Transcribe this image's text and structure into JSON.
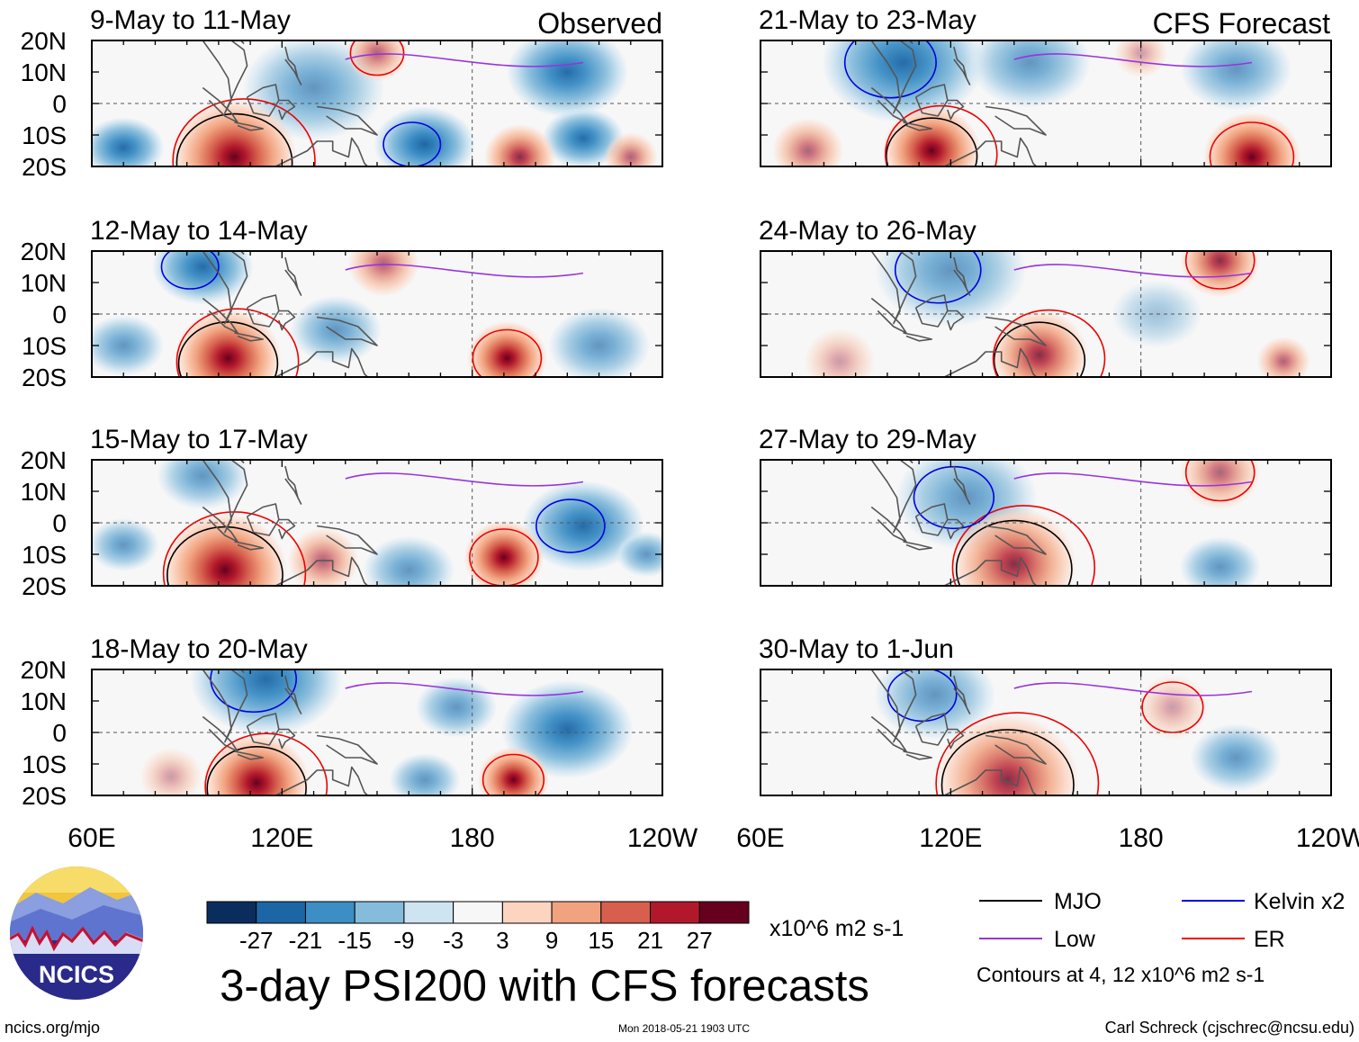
{
  "chart_data": {
    "type": "heatmap",
    "title": "3-day PSI200 with CFS forecasts",
    "variable": "PSI200",
    "units": "x10^6 m2 s-1",
    "column_headers": [
      "Observed",
      "CFS Forecast"
    ],
    "lat_ticks": [
      "20N",
      "10N",
      "0",
      "10S",
      "20S"
    ],
    "lon_ticks": [
      "60E",
      "120E",
      "180",
      "120W"
    ],
    "lat_range": [
      -20,
      20
    ],
    "lon_range": [
      60,
      240
    ],
    "panels": [
      {
        "period": "9-May to 11-May",
        "source": "Observed",
        "positive": [
          {
            "lon": 105,
            "lat": -17,
            "r": 14,
            "v": 27
          },
          {
            "lon": 150,
            "lat": 16,
            "r": 7,
            "v": 9
          },
          {
            "lon": 195,
            "lat": -17,
            "r": 8,
            "v": 15
          },
          {
            "lon": 230,
            "lat": -17,
            "r": 6,
            "v": 9
          }
        ],
        "negative": [
          {
            "lon": 165,
            "lat": -13,
            "r": 10,
            "v": -21
          },
          {
            "lon": 130,
            "lat": 5,
            "r": 14,
            "v": -9
          },
          {
            "lon": 210,
            "lat": 10,
            "r": 12,
            "v": -15
          },
          {
            "lon": 70,
            "lat": -14,
            "r": 8,
            "v": -15
          },
          {
            "lon": 215,
            "lat": -11,
            "r": 8,
            "v": -15
          }
        ]
      },
      {
        "period": "12-May to 14-May",
        "source": "Observed",
        "positive": [
          {
            "lon": 103,
            "lat": -14,
            "r": 12,
            "v": 27
          },
          {
            "lon": 191,
            "lat": -14,
            "r": 9,
            "v": 27
          },
          {
            "lon": 152,
            "lat": 16,
            "r": 8,
            "v": 9
          }
        ],
        "negative": [
          {
            "lon": 95,
            "lat": 15,
            "r": 10,
            "v": -15
          },
          {
            "lon": 137,
            "lat": -5,
            "r": 9,
            "v": -9
          },
          {
            "lon": 220,
            "lat": -10,
            "r": 10,
            "v": -9
          },
          {
            "lon": 70,
            "lat": -10,
            "r": 8,
            "v": -9
          }
        ]
      },
      {
        "period": "15-May to 17-May",
        "source": "Observed",
        "positive": [
          {
            "lon": 102,
            "lat": -15,
            "r": 14,
            "v": 27
          },
          {
            "lon": 190,
            "lat": -11,
            "r": 9,
            "v": 27
          },
          {
            "lon": 133,
            "lat": -12,
            "r": 8,
            "v": 9
          }
        ],
        "negative": [
          {
            "lon": 215,
            "lat": -1,
            "r": 12,
            "v": -15
          },
          {
            "lon": 95,
            "lat": 15,
            "r": 9,
            "v": -9
          },
          {
            "lon": 160,
            "lat": -15,
            "r": 9,
            "v": -9
          },
          {
            "lon": 70,
            "lat": -7,
            "r": 7,
            "v": -9
          },
          {
            "lon": 235,
            "lat": -10,
            "r": 6,
            "v": -9
          }
        ]
      },
      {
        "period": "18-May to 20-May",
        "source": "Observed",
        "positive": [
          {
            "lon": 112,
            "lat": -16,
            "r": 12,
            "v": 21
          },
          {
            "lon": 193,
            "lat": -15,
            "r": 8,
            "v": 21
          },
          {
            "lon": 85,
            "lat": -14,
            "r": 7,
            "v": 3
          }
        ],
        "negative": [
          {
            "lon": 115,
            "lat": 17,
            "r": 15,
            "v": -15
          },
          {
            "lon": 210,
            "lat": 1,
            "r": 13,
            "v": -15
          },
          {
            "lon": 175,
            "lat": 8,
            "r": 8,
            "v": -9
          },
          {
            "lon": 165,
            "lat": -15,
            "r": 7,
            "v": -9
          }
        ]
      },
      {
        "period": "21-May to 23-May",
        "source": "CFS Forecast",
        "positive": [
          {
            "lon": 114,
            "lat": -15,
            "r": 11,
            "v": 21
          },
          {
            "lon": 215,
            "lat": -17,
            "r": 11,
            "v": 21
          },
          {
            "lon": 75,
            "lat": -15,
            "r": 8,
            "v": 9
          },
          {
            "lon": 180,
            "lat": 16,
            "r": 6,
            "v": 3
          }
        ],
        "negative": [
          {
            "lon": 105,
            "lat": 13,
            "r": 16,
            "v": -15
          },
          {
            "lon": 145,
            "lat": 13,
            "r": 12,
            "v": -9
          },
          {
            "lon": 210,
            "lat": 11,
            "r": 11,
            "v": -9
          }
        ]
      },
      {
        "period": "24-May to 26-May",
        "source": "CFS Forecast",
        "positive": [
          {
            "lon": 148,
            "lat": -13,
            "r": 11,
            "v": 15
          },
          {
            "lon": 205,
            "lat": 17,
            "r": 9,
            "v": 15
          },
          {
            "lon": 225,
            "lat": -15,
            "r": 6,
            "v": 9
          },
          {
            "lon": 85,
            "lat": -15,
            "r": 8,
            "v": 3
          }
        ],
        "negative": [
          {
            "lon": 120,
            "lat": 14,
            "r": 15,
            "v": -9
          },
          {
            "lon": 185,
            "lat": 0,
            "r": 9,
            "v": -3
          }
        ]
      },
      {
        "period": "27-May to 29-May",
        "source": "CFS Forecast",
        "positive": [
          {
            "lon": 140,
            "lat": -13,
            "r": 14,
            "v": 15
          },
          {
            "lon": 205,
            "lat": 16,
            "r": 9,
            "v": 9
          }
        ],
        "negative": [
          {
            "lon": 125,
            "lat": 8,
            "r": 14,
            "v": -9
          },
          {
            "lon": 205,
            "lat": -14,
            "r": 8,
            "v": -9
          }
        ]
      },
      {
        "period": "30-May to 1-Jun",
        "source": "CFS Forecast",
        "positive": [
          {
            "lon": 138,
            "lat": -15,
            "r": 16,
            "v": 15
          },
          {
            "lon": 190,
            "lat": 8,
            "r": 8,
            "v": 3
          }
        ],
        "negative": [
          {
            "lon": 115,
            "lat": 12,
            "r": 12,
            "v": -9
          },
          {
            "lon": 210,
            "lat": -8,
            "r": 9,
            "v": -9
          }
        ]
      }
    ],
    "colorbar": {
      "ticks": [
        "-27",
        "-21",
        "-15",
        "-9",
        "-3",
        "3",
        "9",
        "15",
        "21",
        "27"
      ],
      "colors": [
        "#0a2d5e",
        "#1d66a5",
        "#3c8ec5",
        "#86bcdb",
        "#cfe4f1",
        "#f7f7f7",
        "#fcd4c0",
        "#f1a380",
        "#d6604d",
        "#b2182b",
        "#67001f"
      ],
      "units": "x10^6 m2 s-1"
    },
    "legend": [
      {
        "label": "MJO",
        "color": "#000000"
      },
      {
        "label": "Kelvin x2",
        "color": "#0000dd"
      },
      {
        "label": "Low",
        "color": "#9933dd"
      },
      {
        "label": "ER",
        "color": "#ee0000"
      }
    ],
    "contour_note": "Contours at 4, 12 x10^6 m2 s-1"
  },
  "footer": {
    "logo_text": "NCICS",
    "site": "ncics.org/mjo",
    "timestamp": "Mon 2018-05-21 1903 UTC",
    "credit": "Carl Schreck (cjschrec@ncsu.edu)"
  }
}
